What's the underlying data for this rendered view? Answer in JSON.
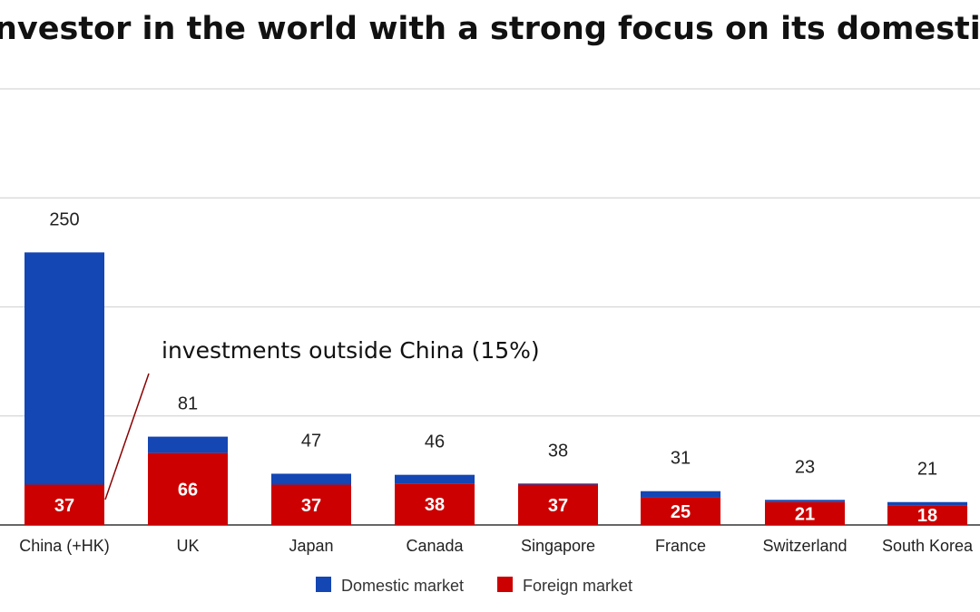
{
  "chart_data": {
    "type": "bar",
    "stacked": true,
    "title": "investor in the world with a strong focus on its domestic m",
    "categories": [
      "China (+HK)",
      "UK",
      "Japan",
      "Canada",
      "Singapore",
      "France",
      "Switzerland",
      "South Korea"
    ],
    "totals": [
      250,
      81,
      47,
      46,
      38,
      31,
      23,
      21
    ],
    "series": [
      {
        "name": "Foreign market",
        "color": "#cc0000",
        "values": [
          37,
          66,
          37,
          38,
          37,
          25,
          21,
          18
        ]
      },
      {
        "name": "Domestic market",
        "color": "#1446b4",
        "values": [
          213,
          15,
          10,
          8,
          1,
          6,
          2,
          3
        ]
      }
    ],
    "ylim": [
      0,
      400
    ],
    "grid": true,
    "legend": "bottom",
    "annotation": "investments outside China (15%)"
  }
}
